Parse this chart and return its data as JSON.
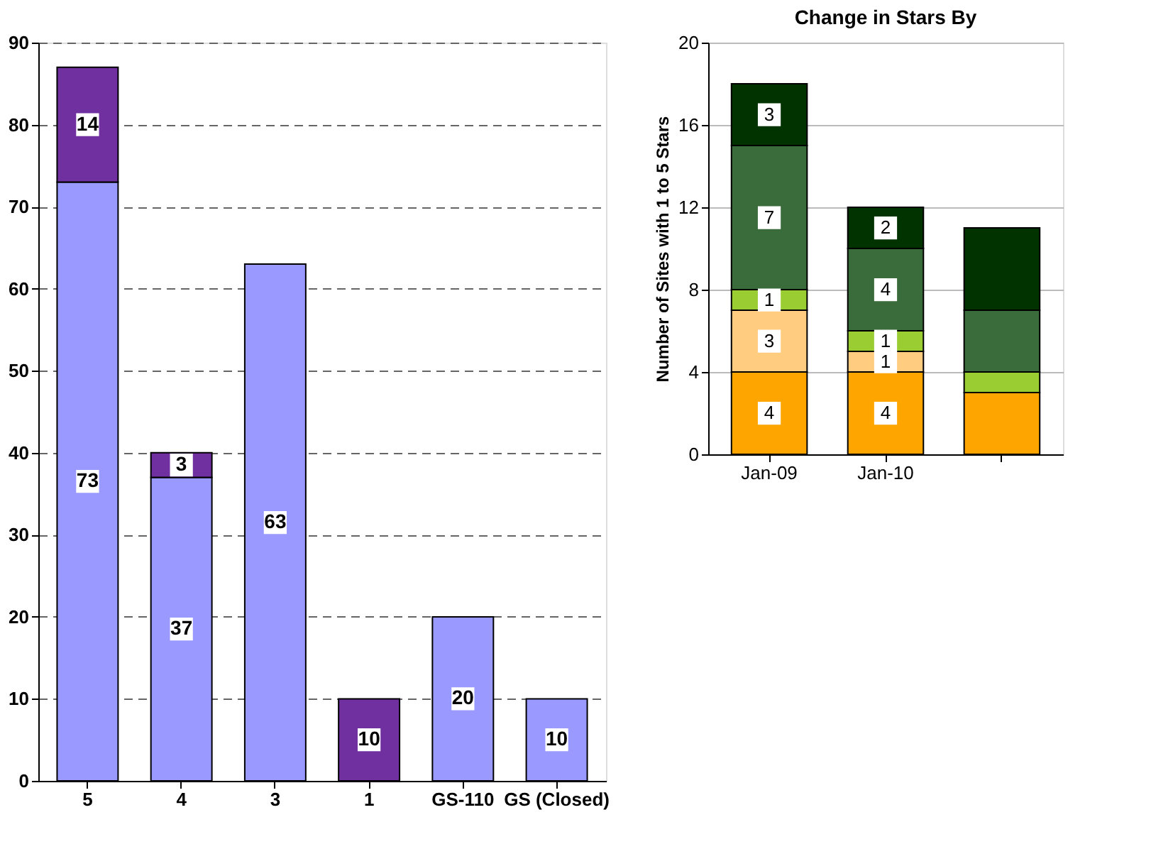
{
  "chart_data": [
    {
      "type": "bar",
      "stacked": true,
      "categories": [
        "5",
        "4",
        "3",
        "1",
        "GS-110",
        "GS (Closed)"
      ],
      "ylim": [
        0,
        90
      ],
      "yticks": [
        0,
        10,
        20,
        30,
        40,
        50,
        60,
        70,
        80,
        90
      ],
      "grid": "y",
      "data_labels": true,
      "series": [
        {
          "color": "#9999ff",
          "values": [
            73,
            37,
            63,
            null,
            20,
            10
          ]
        },
        {
          "color": "#7030a0",
          "values": [
            14,
            3,
            null,
            10,
            null,
            null
          ]
        }
      ]
    },
    {
      "type": "bar",
      "stacked": true,
      "title": "Change in Stars By",
      "ylabel": "Number of Sites with 1 to 5 Stars",
      "categories": [
        "Jan-09",
        "Jan-10",
        null
      ],
      "ylim": [
        0,
        20
      ],
      "yticks": [
        0,
        4,
        8,
        12,
        16,
        20
      ],
      "grid": "y",
      "series": [
        {
          "color": "#ffa500",
          "values": [
            4,
            4,
            3
          ],
          "value_labels": [
            "4",
            "4",
            null
          ]
        },
        {
          "color": "#ffcc80",
          "values": [
            3,
            1,
            0
          ],
          "value_labels": [
            "3",
            "1",
            null
          ]
        },
        {
          "color": "#9acd32",
          "values": [
            1,
            1,
            1
          ],
          "value_labels": [
            "1",
            "1",
            null
          ]
        },
        {
          "color": "#3a6b3a",
          "values": [
            7,
            4,
            3
          ],
          "value_labels": [
            "7",
            "4",
            null
          ]
        },
        {
          "color": "#003300",
          "values": [
            3,
            2,
            4
          ],
          "value_labels": [
            "3",
            "2",
            null
          ]
        }
      ]
    }
  ]
}
